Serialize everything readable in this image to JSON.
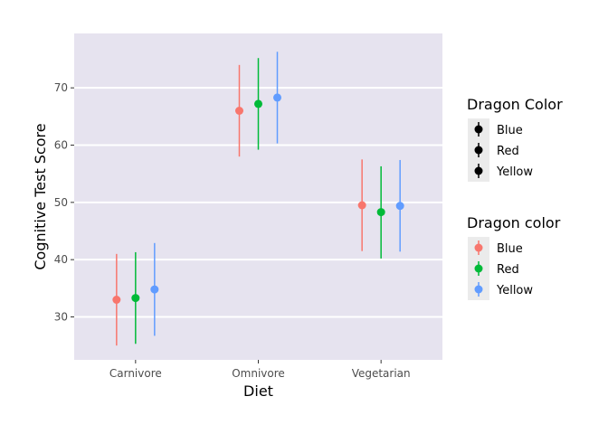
{
  "chart_data": {
    "type": "scatter",
    "xlabel": "Diet",
    "ylabel": "Cognitive Test Score",
    "categories": [
      "Carnivore",
      "Omnivore",
      "Vegetarian"
    ],
    "ylim": [
      22.5,
      79.5
    ],
    "yticks": [
      30,
      40,
      50,
      60,
      70
    ],
    "grid": true,
    "legend_position": "right",
    "series": [
      {
        "name": "Blue",
        "color": "#F8766D",
        "means": [
          33.0,
          66.0,
          49.5
        ],
        "lower": [
          25.0,
          58.0,
          41.5
        ],
        "upper": [
          41.0,
          74.0,
          57.5
        ]
      },
      {
        "name": "Red",
        "color": "#00BA38",
        "means": [
          33.3,
          67.2,
          48.3
        ],
        "lower": [
          25.3,
          59.2,
          40.2
        ],
        "upper": [
          41.3,
          75.2,
          56.3
        ]
      },
      {
        "name": "Yellow",
        "color": "#619CFF",
        "means": [
          34.8,
          68.3,
          49.4
        ],
        "lower": [
          26.7,
          60.3,
          41.4
        ],
        "upper": [
          42.9,
          76.3,
          57.4
        ]
      }
    ],
    "legends": [
      {
        "title": "Dragon Color",
        "items": [
          {
            "label": "Blue",
            "color": "#000000"
          },
          {
            "label": "Red",
            "color": "#000000"
          },
          {
            "label": "Yellow",
            "color": "#000000"
          }
        ]
      },
      {
        "title": "Dragon color",
        "items": [
          {
            "label": "Blue",
            "color": "#F8766D"
          },
          {
            "label": "Red",
            "color": "#00BA38"
          },
          {
            "label": "Yellow",
            "color": "#619CFF"
          }
        ]
      }
    ],
    "panel_background": "#E6E3EF",
    "gridline_color": "#ffffff"
  }
}
